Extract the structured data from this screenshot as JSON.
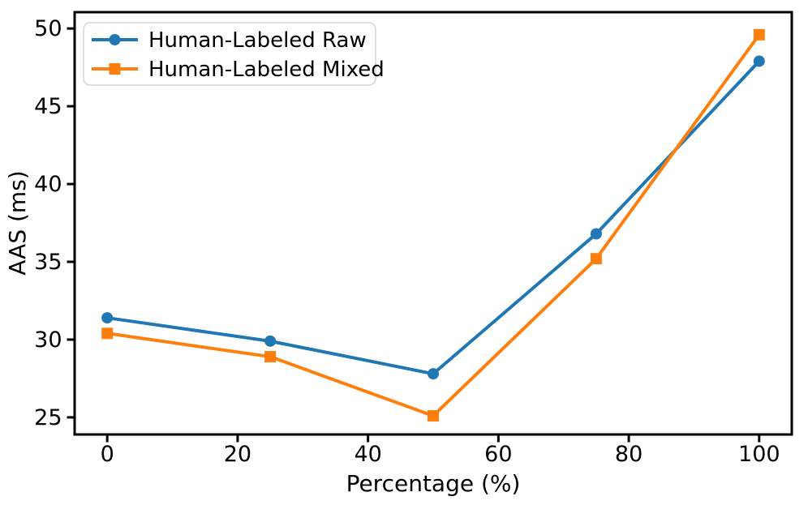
{
  "figure": {
    "background": "#ffffff",
    "spine_color": "#000000",
    "legend_border_color": "#d5d5d5",
    "legend_background": "#ffffff"
  },
  "chart_data": {
    "type": "line",
    "title": "",
    "xlabel": "Percentage (%)",
    "ylabel": "AAS (ms)",
    "x": [
      0,
      25,
      50,
      75,
      100
    ],
    "series": [
      {
        "name": "Human-Labeled Raw",
        "values": [
          31.4,
          29.9,
          27.8,
          36.8,
          47.9
        ],
        "color": "#1f77b4",
        "marker": "circle"
      },
      {
        "name": "Human-Labeled Mixed",
        "values": [
          30.4,
          28.9,
          25.1,
          35.2,
          49.6
        ],
        "color": "#ff7f0e",
        "marker": "square"
      }
    ],
    "xlim": [
      -5,
      105
    ],
    "ylim": [
      23.9,
      51.05
    ],
    "xticks": [
      0,
      20,
      40,
      60,
      80,
      100
    ],
    "xtick_labels": [
      "0",
      "20",
      "40",
      "60",
      "80",
      "100"
    ],
    "yticks": [
      25,
      30,
      35,
      40,
      45,
      50
    ],
    "ytick_labels": [
      "25",
      "30",
      "35",
      "40",
      "45",
      "50"
    ],
    "grid": false,
    "legend_position": "upper left"
  }
}
